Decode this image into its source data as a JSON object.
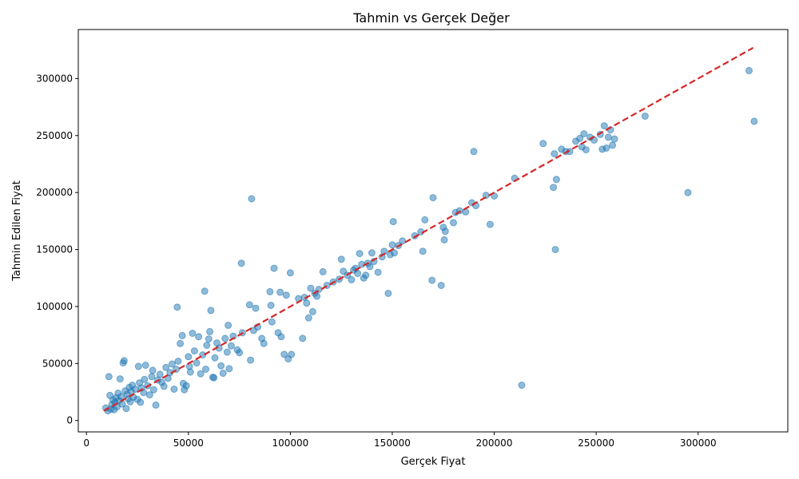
{
  "chart_data": {
    "type": "scatter",
    "title": "Tahmin vs Gerçek Değer",
    "xlabel": "Gerçek Fiyat",
    "ylabel": "Tahmin Edilen Fiyat",
    "xlim": [
      -4000,
      344000
    ],
    "ylim": [
      -10000,
      343000
    ],
    "x_ticks": [
      0,
      50000,
      100000,
      150000,
      200000,
      250000,
      300000
    ],
    "y_ticks": [
      0,
      50000,
      100000,
      150000,
      200000,
      250000,
      300000
    ],
    "grid": false,
    "point_color": "#1f77b4",
    "reference_line": {
      "x": [
        8500,
        327000
      ],
      "y": [
        8500,
        327000
      ],
      "color": "#d62728",
      "style": "dashed"
    },
    "points": [
      [
        9500,
        11000
      ],
      [
        10500,
        8500
      ],
      [
        11000,
        38500
      ],
      [
        11500,
        22000
      ],
      [
        12000,
        10000
      ],
      [
        12500,
        14000
      ],
      [
        13000,
        18000
      ],
      [
        13500,
        9500
      ],
      [
        14000,
        16000
      ],
      [
        14500,
        20000
      ],
      [
        15000,
        12000
      ],
      [
        15500,
        24000
      ],
      [
        16000,
        17500
      ],
      [
        16500,
        36500
      ],
      [
        17000,
        21000
      ],
      [
        17500,
        14500
      ],
      [
        18000,
        50500
      ],
      [
        18500,
        52500
      ],
      [
        19000,
        26000
      ],
      [
        19500,
        10500
      ],
      [
        20000,
        23000
      ],
      [
        20500,
        19000
      ],
      [
        21000,
        29000
      ],
      [
        21500,
        16500
      ],
      [
        22000,
        25500
      ],
      [
        22500,
        31000
      ],
      [
        23000,
        20500
      ],
      [
        24000,
        27500
      ],
      [
        25000,
        18500
      ],
      [
        25500,
        47500
      ],
      [
        26000,
        33000
      ],
      [
        26500,
        16000
      ],
      [
        27000,
        28500
      ],
      [
        28000,
        24500
      ],
      [
        28500,
        36000
      ],
      [
        29000,
        48500
      ],
      [
        30000,
        30500
      ],
      [
        31000,
        22500
      ],
      [
        32000,
        38500
      ],
      [
        32500,
        44000
      ],
      [
        33000,
        27000
      ],
      [
        34000,
        13500
      ],
      [
        35000,
        35500
      ],
      [
        36000,
        40500
      ],
      [
        37000,
        33500
      ],
      [
        38000,
        30000
      ],
      [
        39000,
        46500
      ],
      [
        40000,
        37000
      ],
      [
        41000,
        42000
      ],
      [
        42000,
        49500
      ],
      [
        43000,
        27500
      ],
      [
        44000,
        45000
      ],
      [
        44500,
        99500
      ],
      [
        45000,
        52000
      ],
      [
        46000,
        67500
      ],
      [
        47000,
        74500
      ],
      [
        47500,
        32500
      ],
      [
        48000,
        27000
      ],
      [
        49000,
        30500
      ],
      [
        50000,
        56000
      ],
      [
        50500,
        47500
      ],
      [
        51000,
        42500
      ],
      [
        52000,
        76500
      ],
      [
        53000,
        61000
      ],
      [
        54000,
        50500
      ],
      [
        55000,
        73500
      ],
      [
        56000,
        41000
      ],
      [
        57000,
        57500
      ],
      [
        58000,
        113500
      ],
      [
        58500,
        45000
      ],
      [
        59000,
        66000
      ],
      [
        60000,
        71500
      ],
      [
        60500,
        78000
      ],
      [
        61000,
        96500
      ],
      [
        62000,
        38000
      ],
      [
        62500,
        37500
      ],
      [
        63000,
        55000
      ],
      [
        64000,
        68000
      ],
      [
        65000,
        63500
      ],
      [
        66000,
        48000
      ],
      [
        67000,
        41500
      ],
      [
        68000,
        72000
      ],
      [
        69000,
        60000
      ],
      [
        69500,
        83500
      ],
      [
        70000,
        45500
      ],
      [
        71000,
        65500
      ],
      [
        72000,
        74000
      ],
      [
        74000,
        62000
      ],
      [
        75000,
        59500
      ],
      [
        76000,
        138000
      ],
      [
        76500,
        77000
      ],
      [
        80000,
        101500
      ],
      [
        80500,
        53000
      ],
      [
        81000,
        194500
      ],
      [
        82000,
        79000
      ],
      [
        83000,
        98500
      ],
      [
        84000,
        82000
      ],
      [
        86000,
        72000
      ],
      [
        87000,
        67500
      ],
      [
        90000,
        113000
      ],
      [
        90500,
        101000
      ],
      [
        91000,
        86500
      ],
      [
        92000,
        133500
      ],
      [
        94000,
        77000
      ],
      [
        95000,
        112500
      ],
      [
        95500,
        73500
      ],
      [
        97000,
        58000
      ],
      [
        98000,
        110000
      ],
      [
        99000,
        54000
      ],
      [
        100000,
        129500
      ],
      [
        100500,
        58000
      ],
      [
        104000,
        107000
      ],
      [
        106000,
        72000
      ],
      [
        107000,
        108000
      ],
      [
        108000,
        103000
      ],
      [
        109000,
        90000
      ],
      [
        110000,
        116000
      ],
      [
        111000,
        95500
      ],
      [
        112000,
        111500
      ],
      [
        113000,
        109000
      ],
      [
        114000,
        115000
      ],
      [
        116000,
        130500
      ],
      [
        118000,
        118500
      ],
      [
        121000,
        121500
      ],
      [
        124000,
        124000
      ],
      [
        125000,
        141500
      ],
      [
        126000,
        131000
      ],
      [
        128000,
        127500
      ],
      [
        130000,
        123500
      ],
      [
        131000,
        132000
      ],
      [
        132000,
        133500
      ],
      [
        133000,
        129000
      ],
      [
        134000,
        146500
      ],
      [
        135000,
        137000
      ],
      [
        136000,
        125000
      ],
      [
        137000,
        127500
      ],
      [
        138000,
        138000
      ],
      [
        139000,
        135000
      ],
      [
        140000,
        147000
      ],
      [
        141000,
        139500
      ],
      [
        143000,
        130000
      ],
      [
        145000,
        143500
      ],
      [
        146000,
        148500
      ],
      [
        148000,
        111500
      ],
      [
        149000,
        145500
      ],
      [
        150000,
        154000
      ],
      [
        150500,
        174500
      ],
      [
        151000,
        147000
      ],
      [
        153000,
        153500
      ],
      [
        155000,
        157500
      ],
      [
        161000,
        162000
      ],
      [
        164000,
        165500
      ],
      [
        165000,
        148500
      ],
      [
        166000,
        176000
      ],
      [
        169500,
        123000
      ],
      [
        170000,
        195500
      ],
      [
        174000,
        118500
      ],
      [
        175000,
        169500
      ],
      [
        175500,
        158500
      ],
      [
        176000,
        166000
      ],
      [
        180000,
        173500
      ],
      [
        181000,
        182500
      ],
      [
        183000,
        184000
      ],
      [
        186000,
        183000
      ],
      [
        189000,
        191000
      ],
      [
        190000,
        236000
      ],
      [
        191000,
        188500
      ],
      [
        196000,
        197500
      ],
      [
        198000,
        172000
      ],
      [
        200000,
        197000
      ],
      [
        210000,
        212500
      ],
      [
        213500,
        31000
      ],
      [
        224000,
        243000
      ],
      [
        229000,
        204500
      ],
      [
        229500,
        234000
      ],
      [
        230000,
        150000
      ],
      [
        230500,
        211500
      ],
      [
        233000,
        238000
      ],
      [
        235000,
        236000
      ],
      [
        237000,
        236000
      ],
      [
        240000,
        245000
      ],
      [
        242000,
        247500
      ],
      [
        243000,
        240000
      ],
      [
        244000,
        251500
      ],
      [
        245000,
        237500
      ],
      [
        247000,
        248500
      ],
      [
        249000,
        246000
      ],
      [
        252000,
        251000
      ],
      [
        253000,
        238000
      ],
      [
        254000,
        258500
      ],
      [
        255000,
        239000
      ],
      [
        256000,
        248500
      ],
      [
        257000,
        255000
      ],
      [
        258000,
        241500
      ],
      [
        259000,
        247000
      ],
      [
        274000,
        267000
      ],
      [
        295000,
        200000
      ],
      [
        325000,
        307000
      ],
      [
        327500,
        262500
      ]
    ]
  }
}
